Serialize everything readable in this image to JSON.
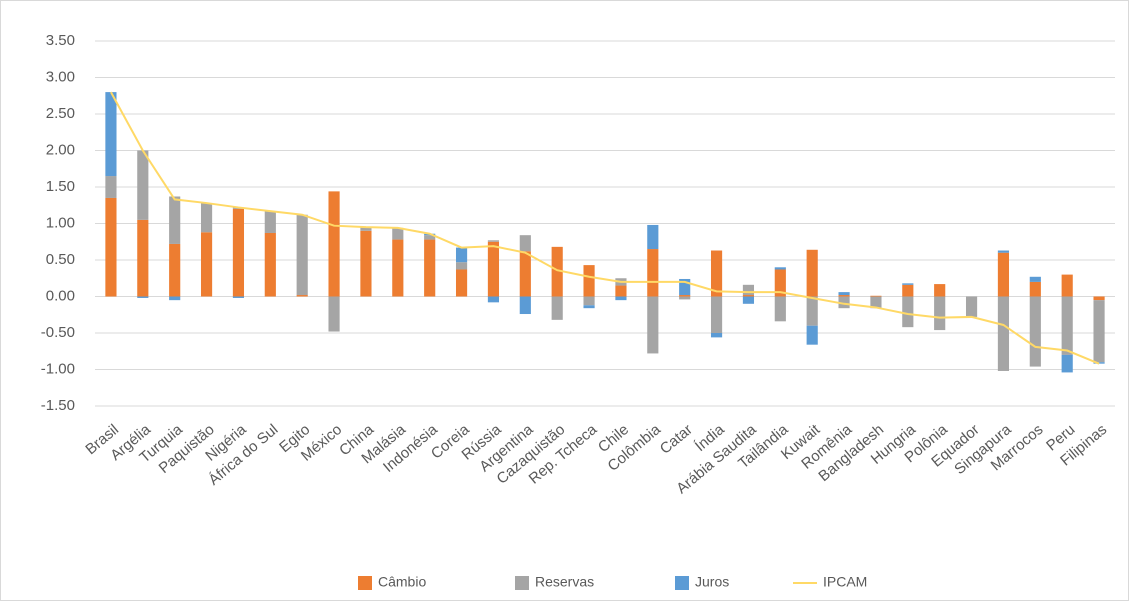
{
  "chart_data": {
    "type": "bar",
    "stacked": true,
    "categories": [
      "Brasil",
      "Argélia",
      "Turquia",
      "Paquistão",
      "Nigéria",
      "África do Sul",
      "Egito",
      "México",
      "China",
      "Malásia",
      "Indonésia",
      "Coreia",
      "Rússia",
      "Argentina",
      "Cazaquistão",
      "Rep. Tcheca",
      "Chile",
      "Colômbia",
      "Catar",
      "Índia",
      "Arábia Saudita",
      "Tailândia",
      "Kuwait",
      "Romênia",
      "Bangladesh",
      "Hungria",
      "Polônia",
      "Equador",
      "Singapura",
      "Marrocos",
      "Peru",
      "Filipinas"
    ],
    "series": [
      {
        "name": "Câmbio",
        "color": "#ed7d31",
        "values": [
          1.35,
          1.05,
          0.72,
          0.88,
          1.2,
          0.87,
          0.02,
          1.44,
          0.9,
          0.78,
          0.78,
          0.37,
          0.75,
          0.62,
          0.68,
          0.43,
          0.15,
          0.65,
          0.02,
          0.63,
          0.02,
          0.37,
          0.64,
          0.02,
          0.01,
          0.16,
          0.17,
          0,
          0.6,
          0.2,
          0.3,
          -0.05
        ]
      },
      {
        "name": "Reservas",
        "color": "#a5a5a5",
        "values": [
          0.3,
          0.95,
          0.65,
          0.4,
          0.02,
          0.3,
          1.1,
          -0.48,
          0.05,
          0.16,
          0.06,
          0.1,
          0.02,
          0.22,
          -0.32,
          -0.12,
          0.1,
          -0.78,
          -0.04,
          -0.5,
          0.14,
          -0.34,
          -0.4,
          -0.16,
          -0.16,
          -0.42,
          -0.46,
          -0.28,
          -1.02,
          -0.96,
          -0.8,
          -0.85
        ]
      },
      {
        "name": "Juros",
        "color": "#5b9bd5",
        "values": [
          1.15,
          -0.02,
          -0.05,
          0,
          -0.02,
          0,
          0,
          0,
          0,
          0,
          0.02,
          0.2,
          -0.08,
          -0.24,
          0,
          -0.04,
          -0.05,
          0.33,
          0.22,
          -0.06,
          -0.1,
          0.03,
          -0.26,
          0.04,
          0,
          0.02,
          0,
          0,
          0.03,
          0.07,
          -0.24,
          -0.02
        ]
      }
    ],
    "line": {
      "name": "IPCAM",
      "color": "#ffd966",
      "values": [
        2.8,
        2.0,
        1.33,
        1.28,
        1.22,
        1.17,
        1.12,
        0.97,
        0.95,
        0.94,
        0.86,
        0.67,
        0.69,
        0.6,
        0.36,
        0.27,
        0.2,
        0.2,
        0.2,
        0.07,
        0.06,
        0.06,
        -0.02,
        -0.1,
        -0.15,
        -0.24,
        -0.29,
        -0.28,
        -0.39,
        -0.69,
        -0.74,
        -0.92
      ]
    },
    "ylim": [
      -1.5,
      3.5
    ],
    "yticks": [
      {
        "value": -1.5,
        "label": "-1.50"
      },
      {
        "value": -1,
        "label": "-1.00"
      },
      {
        "value": -0.5,
        "label": "-0.50"
      },
      {
        "value": 0,
        "label": "0.00"
      },
      {
        "value": 0.5,
        "label": "0.50"
      },
      {
        "value": 1,
        "label": "1.00"
      },
      {
        "value": 1.5,
        "label": "1.50"
      },
      {
        "value": 2,
        "label": "2.00"
      },
      {
        "value": 2.5,
        "label": "2.50"
      },
      {
        "value": 3,
        "label": "3.00"
      },
      {
        "value": 3.5,
        "label": "3.50"
      }
    ],
    "grid": true,
    "legend": "bottom"
  }
}
